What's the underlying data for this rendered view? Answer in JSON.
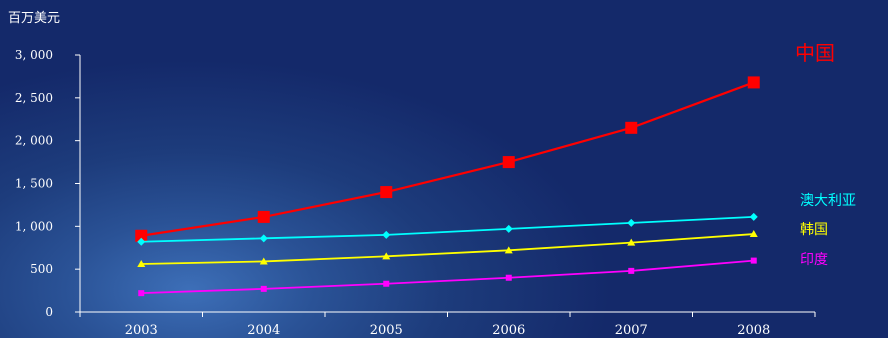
{
  "chart_data": {
    "type": "line",
    "ylabel": "百万美元",
    "categories": [
      "2003",
      "2004",
      "2005",
      "2006",
      "2007",
      "2008"
    ],
    "ylim": [
      0,
      3000
    ],
    "yticks": [
      0,
      500,
      1000,
      1500,
      2000,
      2500,
      3000
    ],
    "ytick_labels": [
      "0",
      "500",
      "1, 000",
      "1, 500",
      "2, 000",
      "2, 500",
      "3, 000"
    ],
    "grid": false,
    "series": [
      {
        "name": "中国",
        "color": "#ff0000",
        "marker": "square",
        "values": [
          890,
          1110,
          1400,
          1750,
          2150,
          2680
        ]
      },
      {
        "name": "澳大利亚",
        "color": "#00ffff",
        "marker": "diamond",
        "values": [
          820,
          860,
          900,
          970,
          1040,
          1110
        ]
      },
      {
        "name": "韩国",
        "color": "#ffff00",
        "marker": "triangle",
        "values": [
          560,
          590,
          650,
          720,
          810,
          910
        ]
      },
      {
        "name": "印度",
        "color": "#ff00ff",
        "marker": "square",
        "values": [
          220,
          270,
          330,
          400,
          480,
          600
        ]
      }
    ]
  }
}
